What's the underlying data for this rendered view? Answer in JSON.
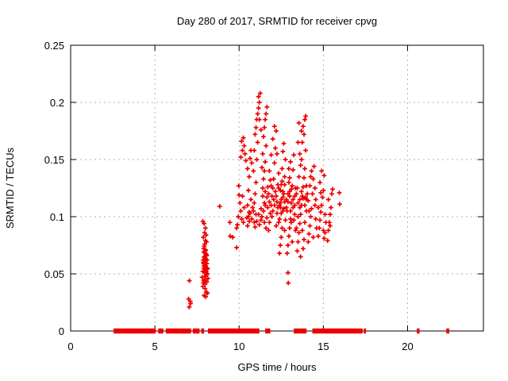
{
  "chart_data": {
    "type": "scatter",
    "title": "Day 280 of 2017, SRMTID for receiver cpvg",
    "xlabel": "GPS time / hours",
    "ylabel": "SRMTID / TECUs",
    "xlim": [
      0,
      24.5
    ],
    "ylim": [
      0,
      0.25
    ],
    "xticks": [
      0,
      5,
      10,
      15,
      20
    ],
    "xtick_labels": [
      "0",
      "5",
      "10",
      "15",
      "20"
    ],
    "yticks": [
      0,
      0.05,
      0.1,
      0.15,
      0.2,
      0.25
    ],
    "ytick_labels": [
      "0",
      "0.05",
      "0.1",
      "0.15",
      "0.2",
      "0.25"
    ],
    "grid": true,
    "legend": "none",
    "marker": "plus",
    "marker_color": "#ee0000",
    "grid_color": "#b5b5b5",
    "axis_color": "#000000",
    "series_name": "SRMTID",
    "points": [
      [
        7.05,
        0.044
      ],
      [
        7.0,
        0.028
      ],
      [
        7.1,
        0.026
      ],
      [
        7.04,
        0.021
      ],
      [
        7.12,
        0.024
      ],
      [
        7.92,
        0.031
      ],
      [
        8.05,
        0.034
      ],
      [
        7.98,
        0.037
      ],
      [
        8.12,
        0.033
      ],
      [
        7.85,
        0.039
      ],
      [
        8.02,
        0.03
      ],
      [
        7.88,
        0.042
      ],
      [
        7.95,
        0.045
      ],
      [
        8.0,
        0.048
      ],
      [
        8.08,
        0.043
      ],
      [
        7.8,
        0.047
      ],
      [
        8.15,
        0.046
      ],
      [
        7.98,
        0.041
      ],
      [
        8.05,
        0.049
      ],
      [
        7.9,
        0.044
      ],
      [
        8.1,
        0.05
      ],
      [
        7.85,
        0.052
      ],
      [
        7.9,
        0.055
      ],
      [
        7.95,
        0.051
      ],
      [
        7.98,
        0.058
      ],
      [
        8.0,
        0.053
      ],
      [
        8.02,
        0.056
      ],
      [
        8.05,
        0.052
      ],
      [
        8.08,
        0.059
      ],
      [
        8.1,
        0.054
      ],
      [
        7.92,
        0.057
      ],
      [
        7.88,
        0.06
      ],
      [
        8.12,
        0.055
      ],
      [
        7.95,
        0.053
      ],
      [
        8.0,
        0.057
      ],
      [
        8.04,
        0.051
      ],
      [
        7.9,
        0.059
      ],
      [
        7.87,
        0.062
      ],
      [
        7.93,
        0.065
      ],
      [
        7.97,
        0.061
      ],
      [
        8.0,
        0.068
      ],
      [
        8.03,
        0.063
      ],
      [
        8.07,
        0.066
      ],
      [
        8.1,
        0.062
      ],
      [
        7.9,
        0.069
      ],
      [
        7.95,
        0.064
      ],
      [
        8.05,
        0.067
      ],
      [
        8.0,
        0.061
      ],
      [
        7.98,
        0.07
      ],
      [
        7.9,
        0.072
      ],
      [
        7.96,
        0.076
      ],
      [
        8.02,
        0.071
      ],
      [
        8.06,
        0.078
      ],
      [
        7.93,
        0.074
      ],
      [
        8.0,
        0.079
      ],
      [
        7.88,
        0.082
      ],
      [
        7.95,
        0.086
      ],
      [
        8.0,
        0.09
      ],
      [
        7.92,
        0.094
      ],
      [
        8.04,
        0.084
      ],
      [
        7.85,
        0.096
      ],
      [
        8.85,
        0.109
      ],
      [
        9.45,
        0.095
      ],
      [
        9.85,
        0.09
      ],
      [
        9.47,
        0.083
      ],
      [
        9.62,
        0.082
      ],
      [
        9.85,
        0.073
      ],
      [
        9.95,
        0.1
      ],
      [
        9.9,
        0.093
      ],
      [
        10.05,
        0.112
      ],
      [
        10.1,
        0.105
      ],
      [
        10.2,
        0.118
      ],
      [
        10.15,
        0.098
      ],
      [
        10.3,
        0.108
      ],
      [
        10.0,
        0.119
      ],
      [
        10.25,
        0.095
      ],
      [
        9.98,
        0.127
      ],
      [
        10.1,
        0.152
      ],
      [
        10.2,
        0.158
      ],
      [
        10.15,
        0.166
      ],
      [
        10.3,
        0.162
      ],
      [
        10.25,
        0.169
      ],
      [
        10.35,
        0.155
      ],
      [
        10.4,
        0.149
      ],
      [
        10.5,
        0.092
      ],
      [
        10.55,
        0.1
      ],
      [
        10.6,
        0.096
      ],
      [
        10.65,
        0.103
      ],
      [
        10.5,
        0.11
      ],
      [
        10.7,
        0.115
      ],
      [
        10.55,
        0.123
      ],
      [
        10.6,
        0.135
      ],
      [
        10.5,
        0.142
      ],
      [
        10.65,
        0.151
      ],
      [
        10.7,
        0.158
      ],
      [
        10.75,
        0.147
      ],
      [
        10.85,
        0.105
      ],
      [
        10.9,
        0.112
      ],
      [
        10.95,
        0.12
      ],
      [
        11.0,
        0.13
      ],
      [
        10.85,
        0.14
      ],
      [
        11.05,
        0.15
      ],
      [
        10.9,
        0.158
      ],
      [
        11.1,
        0.165
      ],
      [
        10.95,
        0.172
      ],
      [
        11.0,
        0.178
      ],
      [
        11.05,
        0.185
      ],
      [
        11.1,
        0.19
      ],
      [
        11.15,
        0.195
      ],
      [
        11.2,
        0.2
      ],
      [
        11.15,
        0.205
      ],
      [
        11.25,
        0.208
      ],
      [
        11.2,
        0.185
      ],
      [
        11.3,
        0.176
      ],
      [
        10.9,
        0.095
      ],
      [
        11.0,
        0.102
      ],
      [
        11.4,
        0.125
      ],
      [
        11.45,
        0.133
      ],
      [
        11.5,
        0.14
      ],
      [
        11.55,
        0.148
      ],
      [
        11.4,
        0.155
      ],
      [
        11.6,
        0.162
      ],
      [
        11.45,
        0.17
      ],
      [
        11.5,
        0.178
      ],
      [
        11.55,
        0.185
      ],
      [
        11.6,
        0.19
      ],
      [
        11.65,
        0.196
      ],
      [
        11.35,
        0.143
      ],
      [
        10.45,
        0.099
      ],
      [
        10.6,
        0.104
      ],
      [
        10.75,
        0.098
      ],
      [
        10.8,
        0.108
      ],
      [
        11.15,
        0.102
      ],
      [
        11.3,
        0.097
      ],
      [
        10.95,
        0.091
      ],
      [
        11.05,
        0.096
      ],
      [
        11.2,
        0.093
      ],
      [
        11.35,
        0.1
      ],
      [
        11.5,
        0.095
      ],
      [
        11.45,
        0.105
      ],
      [
        11.6,
        0.09
      ],
      [
        11.3,
        0.107
      ],
      [
        11.55,
        0.11
      ],
      [
        11.65,
        0.099
      ],
      [
        11.75,
        0.088
      ],
      [
        11.8,
        0.095
      ],
      [
        11.85,
        0.103
      ],
      [
        11.9,
        0.11
      ],
      [
        11.95,
        0.118
      ],
      [
        12.0,
        0.125
      ],
      [
        12.05,
        0.133
      ],
      [
        11.8,
        0.14
      ],
      [
        12.1,
        0.147
      ],
      [
        11.9,
        0.154
      ],
      [
        12.15,
        0.16
      ],
      [
        12.0,
        0.168
      ],
      [
        12.2,
        0.175
      ],
      [
        12.1,
        0.179
      ],
      [
        12.25,
        0.155
      ],
      [
        11.75,
        0.12
      ],
      [
        12.3,
        0.108
      ],
      [
        11.95,
        0.1
      ],
      [
        12.2,
        0.092
      ],
      [
        12.05,
        0.115
      ],
      [
        12.3,
        0.128
      ],
      [
        11.85,
        0.132
      ],
      [
        12.15,
        0.122
      ],
      [
        12.25,
        0.113
      ],
      [
        11.7,
        0.126
      ],
      [
        12.4,
        0.068
      ],
      [
        12.45,
        0.075
      ],
      [
        12.5,
        0.082
      ],
      [
        12.55,
        0.09
      ],
      [
        12.4,
        0.098
      ],
      [
        12.6,
        0.105
      ],
      [
        12.45,
        0.112
      ],
      [
        12.65,
        0.12
      ],
      [
        12.5,
        0.128
      ],
      [
        12.7,
        0.135
      ],
      [
        12.55,
        0.142
      ],
      [
        12.75,
        0.15
      ],
      [
        12.6,
        0.157
      ],
      [
        12.65,
        0.164
      ],
      [
        12.35,
        0.095
      ],
      [
        12.7,
        0.088
      ],
      [
        12.4,
        0.11
      ],
      [
        12.5,
        0.103
      ],
      [
        12.6,
        0.117
      ],
      [
        12.75,
        0.097
      ],
      [
        12.45,
        0.123
      ],
      [
        12.55,
        0.131
      ],
      [
        12.35,
        0.138
      ],
      [
        12.65,
        0.107
      ],
      [
        12.7,
        0.113
      ],
      [
        12.9,
        0.051
      ],
      [
        12.92,
        0.042
      ],
      [
        12.85,
        0.068
      ],
      [
        12.9,
        0.075
      ],
      [
        12.95,
        0.083
      ],
      [
        13.0,
        0.09
      ],
      [
        13.05,
        0.098
      ],
      [
        12.85,
        0.105
      ],
      [
        13.1,
        0.112
      ],
      [
        12.9,
        0.12
      ],
      [
        13.15,
        0.127
      ],
      [
        13.0,
        0.134
      ],
      [
        13.2,
        0.141
      ],
      [
        13.05,
        0.148
      ],
      [
        13.25,
        0.154
      ],
      [
        12.95,
        0.13
      ],
      [
        13.3,
        0.102
      ],
      [
        13.1,
        0.095
      ],
      [
        13.35,
        0.088
      ],
      [
        12.8,
        0.115
      ],
      [
        13.2,
        0.108
      ],
      [
        13.0,
        0.122
      ],
      [
        13.15,
        0.078
      ],
      [
        13.3,
        0.118
      ],
      [
        12.95,
        0.142
      ],
      [
        13.25,
        0.097
      ],
      [
        13.35,
        0.125
      ],
      [
        13.45,
        0.07
      ],
      [
        13.5,
        0.078
      ],
      [
        13.55,
        0.086
      ],
      [
        13.6,
        0.094
      ],
      [
        13.65,
        0.102
      ],
      [
        13.7,
        0.11
      ],
      [
        13.75,
        0.118
      ],
      [
        13.8,
        0.126
      ],
      [
        13.85,
        0.134
      ],
      [
        13.9,
        0.142
      ],
      [
        13.7,
        0.15
      ],
      [
        13.95,
        0.158
      ],
      [
        13.75,
        0.165
      ],
      [
        13.85,
        0.172
      ],
      [
        13.8,
        0.179
      ],
      [
        13.9,
        0.185
      ],
      [
        13.95,
        0.188
      ],
      [
        13.5,
        0.1
      ],
      [
        13.6,
        0.115
      ],
      [
        13.45,
        0.125
      ],
      [
        13.55,
        0.135
      ],
      [
        13.65,
        0.145
      ],
      [
        13.4,
        0.09
      ],
      [
        14.0,
        0.105
      ],
      [
        13.9,
        0.095
      ],
      [
        13.75,
        0.088
      ],
      [
        13.85,
        0.08
      ],
      [
        14.0,
        0.127
      ],
      [
        13.95,
        0.117
      ],
      [
        13.6,
        0.155
      ],
      [
        13.5,
        0.165
      ],
      [
        13.7,
        0.175
      ],
      [
        13.65,
        0.065
      ],
      [
        13.8,
        0.072
      ],
      [
        13.55,
        0.182
      ],
      [
        14.1,
        0.078
      ],
      [
        14.15,
        0.085
      ],
      [
        14.2,
        0.092
      ],
      [
        14.25,
        0.1
      ],
      [
        14.3,
        0.107
      ],
      [
        14.1,
        0.114
      ],
      [
        14.35,
        0.12
      ],
      [
        14.2,
        0.127
      ],
      [
        14.4,
        0.133
      ],
      [
        14.3,
        0.14
      ],
      [
        14.45,
        0.144
      ],
      [
        14.5,
        0.11
      ],
      [
        14.55,
        0.098
      ],
      [
        14.6,
        0.09
      ],
      [
        14.4,
        0.082
      ],
      [
        14.5,
        0.125
      ],
      [
        14.05,
        0.12
      ],
      [
        14.25,
        0.135
      ],
      [
        14.55,
        0.115
      ],
      [
        14.15,
        0.105
      ],
      [
        14.7,
        0.083
      ],
      [
        14.75,
        0.09
      ],
      [
        14.8,
        0.097
      ],
      [
        14.85,
        0.104
      ],
      [
        14.9,
        0.11
      ],
      [
        14.95,
        0.117
      ],
      [
        15.0,
        0.123
      ],
      [
        14.8,
        0.13
      ],
      [
        15.05,
        0.136
      ],
      [
        14.9,
        0.14
      ],
      [
        15.1,
        0.102
      ],
      [
        15.15,
        0.095
      ],
      [
        14.7,
        0.108
      ],
      [
        15.0,
        0.088
      ],
      [
        14.85,
        0.121
      ],
      [
        15.3,
        0.088
      ],
      [
        15.35,
        0.095
      ],
      [
        15.4,
        0.102
      ],
      [
        15.45,
        0.108
      ],
      [
        15.3,
        0.115
      ],
      [
        15.5,
        0.12
      ],
      [
        15.55,
        0.124
      ],
      [
        15.4,
        0.092
      ],
      [
        15.95,
        0.121
      ],
      [
        15.97,
        0.111
      ],
      [
        15.05,
        0.081
      ],
      [
        15.25,
        0.079
      ],
      [
        15.1,
        0.086
      ],
      [
        11.4,
        0.118
      ],
      [
        11.55,
        0.122
      ],
      [
        11.7,
        0.108
      ],
      [
        11.8,
        0.113
      ],
      [
        11.9,
        0.127
      ],
      [
        12.0,
        0.105
      ],
      [
        12.1,
        0.11
      ],
      [
        12.2,
        0.118
      ],
      [
        12.35,
        0.125
      ],
      [
        12.5,
        0.115
      ],
      [
        12.6,
        0.122
      ],
      [
        12.7,
        0.128
      ],
      [
        12.8,
        0.108
      ],
      [
        12.9,
        0.113
      ],
      [
        13.0,
        0.118
      ],
      [
        13.1,
        0.124
      ],
      [
        13.2,
        0.115
      ],
      [
        13.3,
        0.11
      ],
      [
        13.4,
        0.12
      ],
      [
        13.5,
        0.112
      ],
      [
        13.6,
        0.108
      ],
      [
        13.7,
        0.122
      ],
      [
        13.8,
        0.116
      ],
      [
        13.9,
        0.11
      ],
      [
        14.0,
        0.115
      ],
      [
        11.5,
        0.112
      ],
      [
        11.65,
        0.117
      ],
      [
        12.25,
        0.103
      ],
      [
        12.45,
        0.108
      ],
      [
        13.05,
        0.105
      ]
    ],
    "baseline_y": 0,
    "baseline_segments": [
      [
        2.6,
        2.65
      ],
      [
        2.72,
        2.76
      ],
      [
        2.82,
        2.86
      ],
      [
        2.95,
        3.0
      ],
      [
        3.1,
        3.55
      ],
      [
        3.62,
        3.8
      ],
      [
        3.85,
        4.75
      ],
      [
        4.8,
        5.0
      ],
      [
        5.25,
        5.32
      ],
      [
        5.4,
        5.45
      ],
      [
        5.7,
        6.25
      ],
      [
        6.3,
        6.6
      ],
      [
        6.65,
        7.1
      ],
      [
        7.3,
        7.6
      ],
      [
        7.8,
        7.87
      ],
      [
        8.2,
        10.85
      ],
      [
        10.9,
        11.15
      ],
      [
        11.6,
        11.8
      ],
      [
        13.3,
        13.55
      ],
      [
        13.65,
        13.95
      ],
      [
        14.4,
        15.5
      ],
      [
        15.55,
        15.72
      ],
      [
        15.78,
        15.9
      ],
      [
        15.95,
        16.05
      ],
      [
        16.1,
        16.22
      ],
      [
        16.3,
        16.42
      ],
      [
        16.5,
        16.58
      ],
      [
        16.65,
        16.72
      ],
      [
        16.8,
        16.87
      ],
      [
        16.95,
        17.0
      ],
      [
        17.1,
        17.14
      ],
      [
        17.25,
        17.28
      ],
      [
        17.45,
        17.48
      ],
      [
        20.6,
        20.66
      ],
      [
        22.35,
        22.42
      ]
    ]
  }
}
